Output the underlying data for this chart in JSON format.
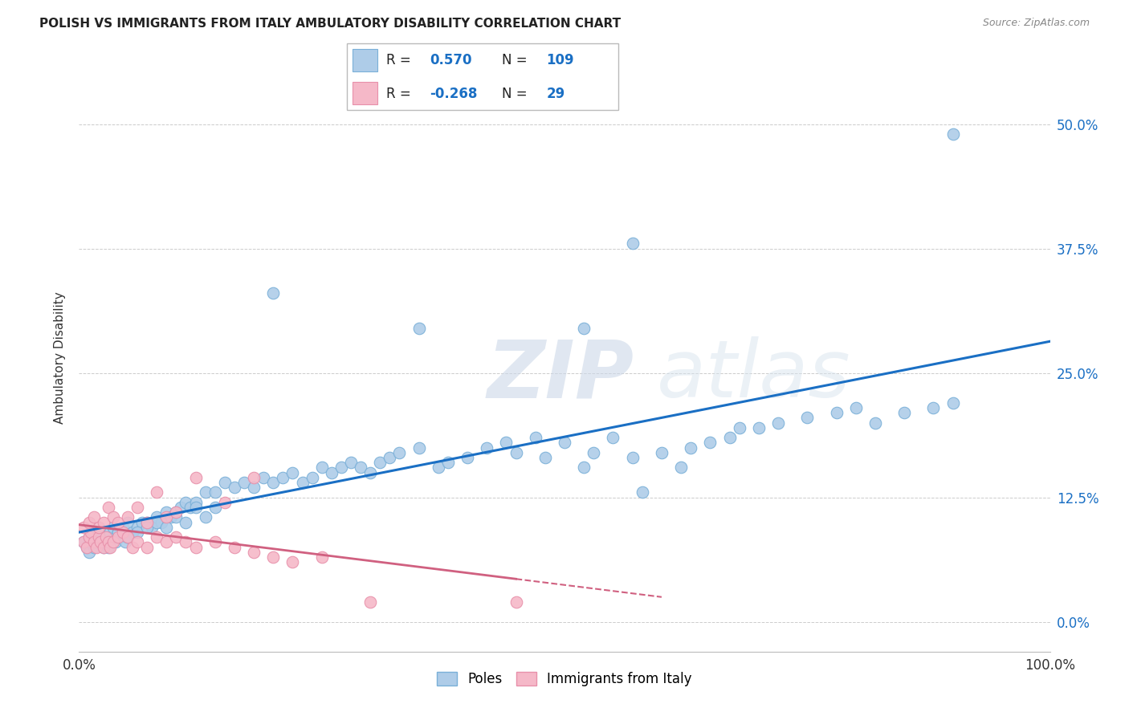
{
  "title": "POLISH VS IMMIGRANTS FROM ITALY AMBULATORY DISABILITY CORRELATION CHART",
  "source": "Source: ZipAtlas.com",
  "ylabel": "Ambulatory Disability",
  "xlim": [
    0,
    1.0
  ],
  "ylim": [
    -0.03,
    0.56
  ],
  "yticks": [
    0.0,
    0.125,
    0.25,
    0.375,
    0.5
  ],
  "ytick_labels": [
    "0.0%",
    "12.5%",
    "25.0%",
    "37.5%",
    "50.0%"
  ],
  "xticks": [
    0.0,
    0.25,
    0.5,
    0.75,
    1.0
  ],
  "xtick_labels": [
    "0.0%",
    "",
    "",
    "",
    "100.0%"
  ],
  "poles_color": "#aecce8",
  "italy_color": "#f5b8c8",
  "poles_edge": "#7ab0d8",
  "italy_edge": "#e890aa",
  "line_blue": "#1a6fc4",
  "line_pink": "#d06080",
  "R_poles": "0.570",
  "N_poles": "109",
  "R_italy": "-0.268",
  "N_italy": "29",
  "legend_label_poles": "Poles",
  "legend_label_italy": "Immigrants from Italy",
  "watermark_zip": "ZIP",
  "watermark_atlas": "atlas",
  "poles_x": [
    0.005,
    0.008,
    0.01,
    0.01,
    0.012,
    0.015,
    0.015,
    0.018,
    0.02,
    0.02,
    0.022,
    0.025,
    0.025,
    0.028,
    0.03,
    0.03,
    0.032,
    0.035,
    0.038,
    0.04,
    0.042,
    0.045,
    0.048,
    0.05,
    0.05,
    0.055,
    0.06,
    0.065,
    0.07,
    0.075,
    0.08,
    0.085,
    0.09,
    0.095,
    0.1,
    0.105,
    0.11,
    0.115,
    0.12,
    0.13,
    0.14,
    0.15,
    0.16,
    0.17,
    0.18,
    0.19,
    0.2,
    0.21,
    0.22,
    0.23,
    0.24,
    0.25,
    0.26,
    0.27,
    0.28,
    0.29,
    0.3,
    0.31,
    0.32,
    0.33,
    0.35,
    0.37,
    0.38,
    0.4,
    0.42,
    0.44,
    0.45,
    0.47,
    0.48,
    0.5,
    0.52,
    0.53,
    0.55,
    0.57,
    0.58,
    0.6,
    0.62,
    0.63,
    0.65,
    0.67,
    0.68,
    0.7,
    0.72,
    0.75,
    0.78,
    0.8,
    0.82,
    0.85,
    0.88,
    0.9,
    0.01,
    0.02,
    0.03,
    0.04,
    0.05,
    0.06,
    0.07,
    0.08,
    0.09,
    0.1,
    0.11,
    0.12,
    0.13,
    0.14,
    0.35,
    0.52,
    0.57,
    0.9,
    0.2
  ],
  "poles_y": [
    0.08,
    0.075,
    0.07,
    0.085,
    0.08,
    0.075,
    0.09,
    0.08,
    0.085,
    0.09,
    0.08,
    0.075,
    0.085,
    0.08,
    0.075,
    0.085,
    0.09,
    0.095,
    0.08,
    0.09,
    0.085,
    0.095,
    0.08,
    0.1,
    0.085,
    0.09,
    0.095,
    0.1,
    0.1,
    0.095,
    0.105,
    0.1,
    0.11,
    0.105,
    0.11,
    0.115,
    0.12,
    0.115,
    0.12,
    0.13,
    0.13,
    0.14,
    0.135,
    0.14,
    0.135,
    0.145,
    0.14,
    0.145,
    0.15,
    0.14,
    0.145,
    0.155,
    0.15,
    0.155,
    0.16,
    0.155,
    0.15,
    0.16,
    0.165,
    0.17,
    0.175,
    0.155,
    0.16,
    0.165,
    0.175,
    0.18,
    0.17,
    0.185,
    0.165,
    0.18,
    0.155,
    0.17,
    0.185,
    0.165,
    0.13,
    0.17,
    0.155,
    0.175,
    0.18,
    0.185,
    0.195,
    0.195,
    0.2,
    0.205,
    0.21,
    0.215,
    0.2,
    0.21,
    0.215,
    0.22,
    0.08,
    0.085,
    0.08,
    0.09,
    0.085,
    0.09,
    0.095,
    0.1,
    0.095,
    0.105,
    0.1,
    0.115,
    0.105,
    0.115,
    0.295,
    0.295,
    0.38,
    0.49,
    0.33
  ],
  "italy_x": [
    0.005,
    0.008,
    0.01,
    0.012,
    0.015,
    0.018,
    0.02,
    0.022,
    0.025,
    0.028,
    0.03,
    0.032,
    0.035,
    0.04,
    0.045,
    0.05,
    0.055,
    0.06,
    0.07,
    0.08,
    0.09,
    0.1,
    0.11,
    0.12,
    0.14,
    0.16,
    0.18,
    0.2,
    0.22
  ],
  "italy_y": [
    0.08,
    0.075,
    0.085,
    0.09,
    0.08,
    0.075,
    0.085,
    0.08,
    0.075,
    0.085,
    0.08,
    0.075,
    0.08,
    0.085,
    0.09,
    0.085,
    0.075,
    0.08,
    0.075,
    0.085,
    0.08,
    0.085,
    0.08,
    0.075,
    0.08,
    0.075,
    0.07,
    0.065,
    0.06
  ],
  "italy_extra_x": [
    0.005,
    0.01,
    0.015,
    0.02,
    0.025,
    0.03,
    0.035,
    0.04,
    0.05,
    0.06,
    0.07,
    0.08,
    0.09,
    0.1,
    0.12,
    0.15,
    0.18,
    0.25,
    0.3,
    0.45
  ],
  "italy_extra_y": [
    0.095,
    0.1,
    0.105,
    0.095,
    0.1,
    0.115,
    0.105,
    0.1,
    0.105,
    0.115,
    0.1,
    0.13,
    0.105,
    0.11,
    0.145,
    0.12,
    0.145,
    0.065,
    0.02,
    0.02
  ]
}
